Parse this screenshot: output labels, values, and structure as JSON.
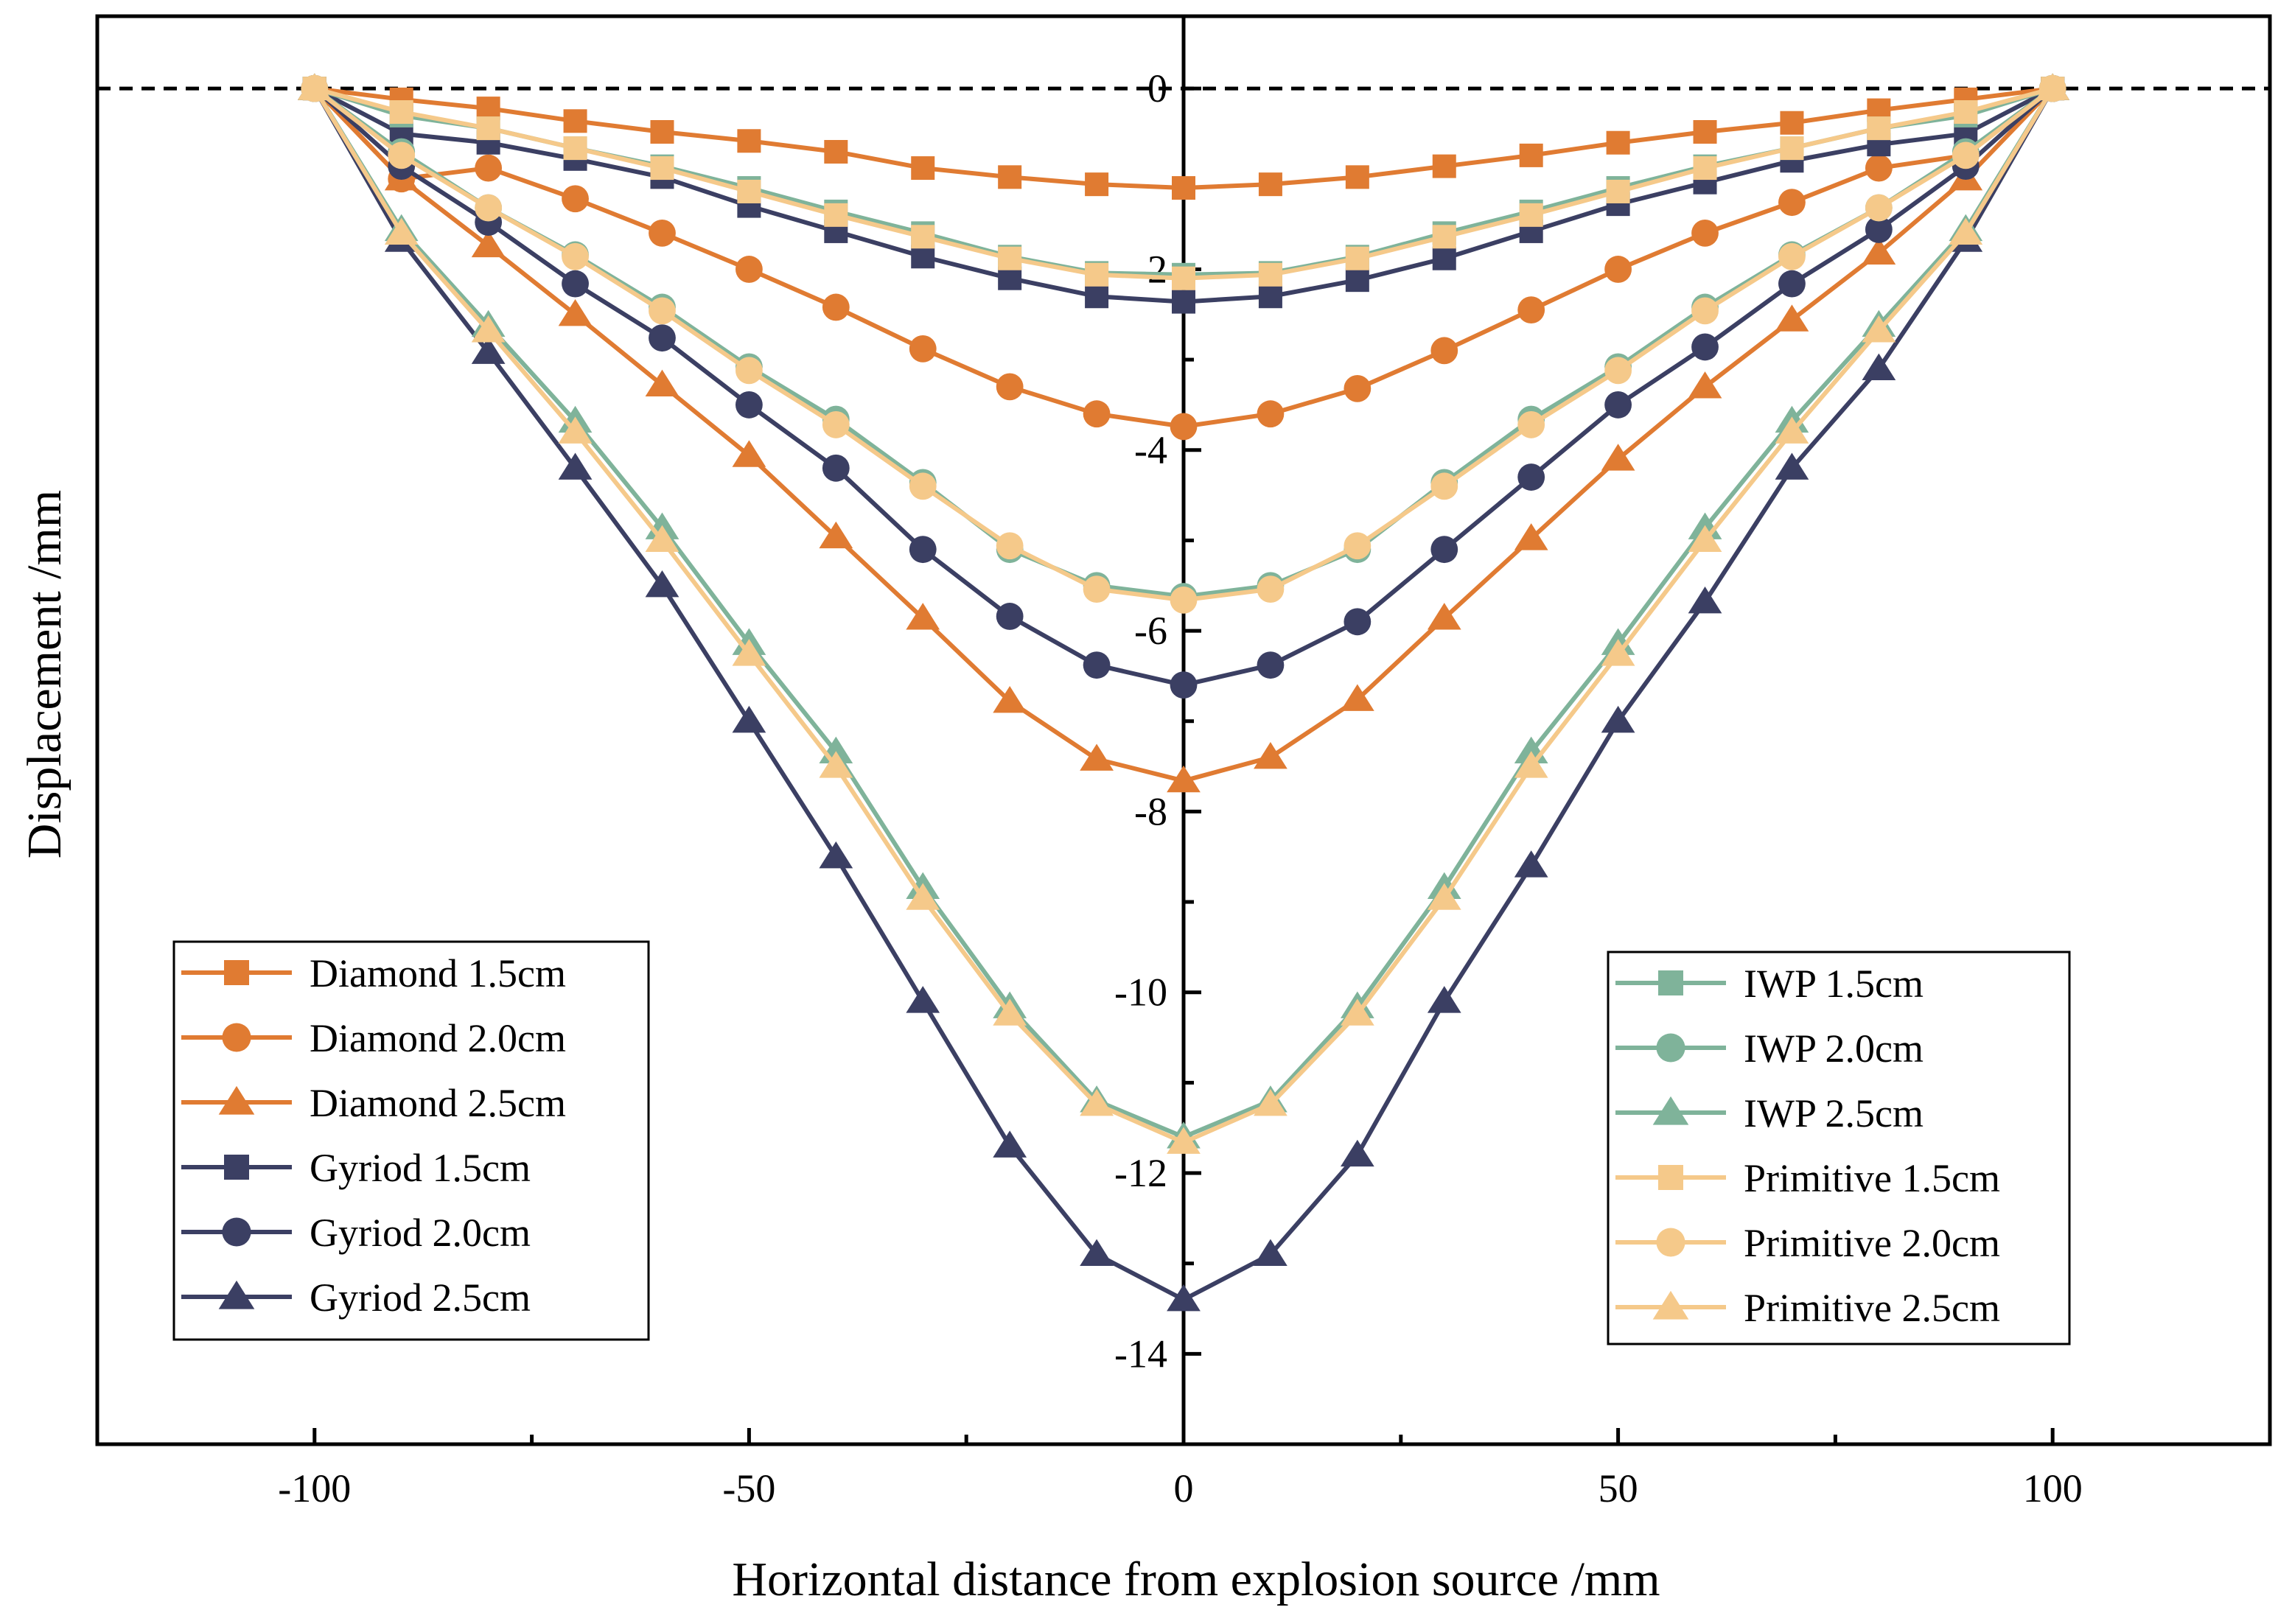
{
  "chart_data": {
    "type": "line",
    "xlabel": "Horizontal distance from explosion source /mm",
    "ylabel": "Displacement /mm",
    "xlim": [
      -125,
      125
    ],
    "ylim": [
      -15,
      0.8
    ],
    "x_ticks": [
      -100,
      -50,
      0,
      50,
      100
    ],
    "y_ticks": [
      0,
      -2,
      -4,
      -6,
      -8,
      -10,
      -12,
      -14
    ],
    "reference_line": {
      "y": 0,
      "style": "dashed"
    },
    "x": [
      -100,
      -90,
      -80,
      -70,
      -60,
      -50,
      -40,
      -30,
      -20,
      -10,
      0,
      10,
      20,
      30,
      40,
      50,
      60,
      70,
      80,
      90,
      100
    ],
    "series": [
      {
        "name": "Diamond 1.5cm",
        "color": "#E07B32",
        "marker": "square",
        "values": [
          0,
          -0.12,
          -0.22,
          -0.36,
          -0.48,
          -0.58,
          -0.7,
          -0.88,
          -0.98,
          -1.06,
          -1.1,
          -1.06,
          -0.98,
          -0.86,
          -0.74,
          -0.6,
          -0.48,
          -0.38,
          -0.24,
          -0.12,
          0
        ]
      },
      {
        "name": "Diamond 2.0cm",
        "color": "#E07B32",
        "marker": "circle",
        "values": [
          0,
          -1.0,
          -0.88,
          -1.22,
          -1.6,
          -2.0,
          -2.42,
          -2.88,
          -3.3,
          -3.6,
          -3.74,
          -3.6,
          -3.32,
          -2.9,
          -2.45,
          -2.0,
          -1.6,
          -1.26,
          -0.88,
          -0.74,
          0
        ]
      },
      {
        "name": "Diamond 2.5cm",
        "color": "#E07B32",
        "marker": "triangle",
        "values": [
          0,
          -1.0,
          -1.74,
          -2.5,
          -3.28,
          -4.06,
          -4.96,
          -5.86,
          -6.78,
          -7.42,
          -7.66,
          -7.4,
          -6.76,
          -5.86,
          -4.98,
          -4.1,
          -3.3,
          -2.56,
          -1.82,
          -1.0,
          0
        ]
      },
      {
        "name": "Gyriod 1.5cm",
        "color": "#3B3F63",
        "marker": "square",
        "values": [
          0,
          -0.5,
          -0.6,
          -0.78,
          -0.98,
          -1.3,
          -1.58,
          -1.86,
          -2.1,
          -2.3,
          -2.36,
          -2.3,
          -2.12,
          -1.88,
          -1.58,
          -1.28,
          -1.04,
          -0.8,
          -0.62,
          -0.5,
          0
        ]
      },
      {
        "name": "Gyriod 2.0cm",
        "color": "#3B3F63",
        "marker": "circle",
        "values": [
          0,
          -0.86,
          -1.48,
          -2.16,
          -2.76,
          -3.5,
          -4.2,
          -5.1,
          -5.84,
          -6.38,
          -6.6,
          -6.38,
          -5.9,
          -5.1,
          -4.3,
          -3.5,
          -2.86,
          -2.16,
          -1.56,
          -0.86,
          0
        ]
      },
      {
        "name": "Gyriod 2.5cm",
        "color": "#3B3F63",
        "marker": "triangle",
        "values": [
          0,
          -1.68,
          -2.92,
          -4.2,
          -5.5,
          -7.0,
          -8.5,
          -10.1,
          -11.7,
          -12.9,
          -13.4,
          -12.9,
          -11.8,
          -10.1,
          -8.6,
          -7.0,
          -5.68,
          -4.2,
          -3.1,
          -1.68,
          0
        ]
      },
      {
        "name": "IWP 1.5cm",
        "color": "#7FB39A",
        "marker": "square",
        "values": [
          0,
          -0.3,
          -0.44,
          -0.66,
          -0.86,
          -1.1,
          -1.36,
          -1.6,
          -1.86,
          -2.04,
          -2.06,
          -2.04,
          -1.86,
          -1.6,
          -1.36,
          -1.1,
          -0.86,
          -0.66,
          -0.44,
          -0.3,
          0
        ]
      },
      {
        "name": "IWP 2.0cm",
        "color": "#7FB39A",
        "marker": "circle",
        "values": [
          0,
          -0.7,
          -1.32,
          -1.84,
          -2.42,
          -3.08,
          -3.66,
          -4.36,
          -5.1,
          -5.5,
          -5.62,
          -5.5,
          -5.1,
          -4.36,
          -3.66,
          -3.08,
          -2.42,
          -1.84,
          -1.32,
          -0.7,
          0
        ]
      },
      {
        "name": "IWP 2.5cm",
        "color": "#7FB39A",
        "marker": "triangle",
        "values": [
          0,
          -1.56,
          -2.62,
          -3.68,
          -4.86,
          -6.14,
          -7.34,
          -8.84,
          -10.16,
          -11.2,
          -11.6,
          -11.2,
          -10.16,
          -8.84,
          -7.34,
          -6.14,
          -4.86,
          -3.68,
          -2.62,
          -1.56,
          0
        ]
      },
      {
        "name": "Primitive 1.5cm",
        "color": "#F5C98A",
        "marker": "square",
        "values": [
          0,
          -0.26,
          -0.44,
          -0.66,
          -0.88,
          -1.14,
          -1.4,
          -1.64,
          -1.88,
          -2.06,
          -2.1,
          -2.06,
          -1.88,
          -1.64,
          -1.4,
          -1.14,
          -0.88,
          -0.66,
          -0.44,
          -0.26,
          0
        ]
      },
      {
        "name": "Primitive 2.0cm",
        "color": "#F5C98A",
        "marker": "circle",
        "values": [
          0,
          -0.74,
          -1.32,
          -1.86,
          -2.46,
          -3.12,
          -3.72,
          -4.4,
          -5.06,
          -5.54,
          -5.66,
          -5.54,
          -5.06,
          -4.4,
          -3.72,
          -3.12,
          -2.46,
          -1.86,
          -1.32,
          -0.74,
          0
        ]
      },
      {
        "name": "Primitive 2.5cm",
        "color": "#F5C98A",
        "marker": "triangle",
        "values": [
          0,
          -1.6,
          -2.68,
          -3.8,
          -5.0,
          -6.26,
          -7.5,
          -8.96,
          -10.24,
          -11.24,
          -11.66,
          -11.24,
          -10.24,
          -8.96,
          -7.5,
          -6.26,
          -5.0,
          -3.8,
          -2.68,
          -1.6,
          0
        ]
      }
    ],
    "legends": [
      {
        "position": "bottom-left",
        "entries": [
          "Diamond 1.5cm",
          "Diamond 2.0cm",
          "Diamond 2.5cm",
          "Gyriod 1.5cm",
          "Gyriod 2.0cm",
          "Gyriod 2.5cm"
        ]
      },
      {
        "position": "bottom-right",
        "entries": [
          "IWP 1.5cm",
          "IWP 2.0cm",
          "IWP 2.5cm",
          "Primitive 1.5cm",
          "Primitive 2.0cm",
          "Primitive 2.5cm"
        ]
      }
    ]
  }
}
